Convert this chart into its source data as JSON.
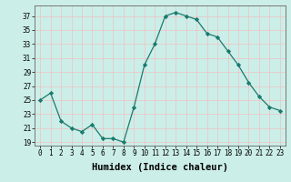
{
  "x": [
    0,
    1,
    2,
    3,
    4,
    5,
    6,
    7,
    8,
    9,
    10,
    11,
    12,
    13,
    14,
    15,
    16,
    17,
    18,
    19,
    20,
    21,
    22,
    23
  ],
  "y": [
    25,
    26,
    22,
    21,
    20.5,
    21.5,
    19.5,
    19.5,
    19,
    24,
    30,
    33,
    37,
    37.5,
    37,
    36.5,
    34.5,
    34,
    32,
    30,
    27.5,
    25.5,
    24,
    23.5
  ],
  "line_color": "#1a7a6e",
  "marker": "D",
  "marker_size": 2.2,
  "bg_color": "#cceee8",
  "grid_color": "#b0d8d0",
  "ylabel_ticks": [
    19,
    21,
    23,
    25,
    27,
    29,
    31,
    33,
    35,
    37
  ],
  "ylim": [
    18.5,
    38.5
  ],
  "xlim": [
    -0.5,
    23.5
  ],
  "xlabel": "Humidex (Indice chaleur)",
  "tick_fontsize": 5.5,
  "label_fontsize": 7.5
}
